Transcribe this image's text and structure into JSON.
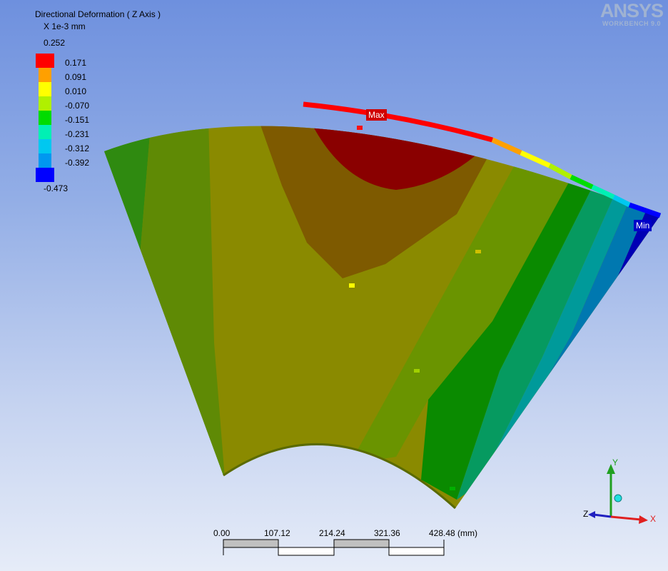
{
  "legend": {
    "title": "Directional Deformation ( Z Axis )",
    "units": "X 1e-3 mm",
    "max_value": "0.252",
    "min_value": "-0.473",
    "labels": [
      "0.171",
      "0.091",
      "0.010",
      "-0.070",
      "-0.151",
      "-0.231",
      "-0.312",
      "-0.392"
    ],
    "colors": [
      "#ff0000",
      "#ffa000",
      "#ffff00",
      "#b0f000",
      "#00dc00",
      "#00f0b4",
      "#00c8f0",
      "#0098f0",
      "#0000ff"
    ]
  },
  "logo": {
    "main": "ANSYS",
    "sub": "WORKBENCH 9.0"
  },
  "probes": {
    "max_label": "Max",
    "min_label": "Min",
    "max_color": "#d00000",
    "min_color": "#0000c8"
  },
  "scale_bar": {
    "ticks": [
      "0.00",
      "107.12",
      "214.24",
      "321.36",
      "428.48 (mm)"
    ]
  },
  "triad": {
    "x_label": "X",
    "y_label": "Y",
    "z_label": "Z",
    "x_color": "#e02020",
    "y_color": "#20a020"
  }
}
